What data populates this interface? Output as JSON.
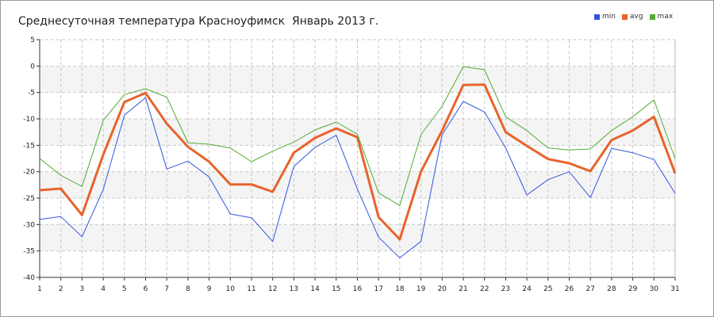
{
  "chart_data": {
    "type": "line",
    "title": "Среднесуточная температура Красноуфимск  Январь 2013 г.",
    "x": [
      1,
      2,
      3,
      4,
      5,
      6,
      7,
      8,
      9,
      10,
      11,
      12,
      13,
      14,
      15,
      16,
      17,
      18,
      19,
      20,
      21,
      22,
      23,
      24,
      25,
      26,
      27,
      28,
      29,
      30,
      31
    ],
    "xlim": [
      1,
      31
    ],
    "ylim": [
      -40,
      5
    ],
    "yticks": [
      5,
      0,
      -5,
      -10,
      -15,
      -20,
      -25,
      -30,
      -35,
      -40
    ],
    "grid": true,
    "legend_position": "top-right",
    "series": [
      {
        "name": "min",
        "color": "#3355dd",
        "values": [
          -29,
          -28.5,
          -32.3,
          -23.4,
          -9.3,
          -6,
          -19.5,
          -18,
          -21,
          -28,
          -28.7,
          -33.2,
          -19,
          -15.4,
          -13.1,
          -23.3,
          -32.4,
          -36.3,
          -33.2,
          -13,
          -6.7,
          -8.7,
          -15.5,
          -24.4,
          -21.5,
          -20,
          -24.9,
          -15.6,
          -16.4,
          -17.7,
          -24.1
        ]
      },
      {
        "name": "avg",
        "color": "#e8632b",
        "values": [
          -23.5,
          -23.2,
          -28.2,
          -16.8,
          -6.8,
          -5.1,
          -10.9,
          -15.3,
          -18.1,
          -22.4,
          -22.4,
          -23.8,
          -16.4,
          -13.6,
          -11.8,
          -13.5,
          -28.6,
          -32.8,
          -20,
          -12.2,
          -3.6,
          -3.5,
          -12.5,
          -15.1,
          -17.6,
          -18.4,
          -19.9,
          -14,
          -12.2,
          -9.6,
          -20.3
        ]
      },
      {
        "name": "max",
        "color": "#55aa33",
        "values": [
          -17.5,
          -20.7,
          -22.8,
          -10.3,
          -5.4,
          -4.3,
          -5.9,
          -14.5,
          -14.8,
          -15.5,
          -18.1,
          -16.1,
          -14.4,
          -12.1,
          -10.6,
          -12.9,
          -24,
          -26.4,
          -13,
          -7.6,
          -0.1,
          -0.7,
          -9.6,
          -12.2,
          -15.5,
          -15.9,
          -15.7,
          -12.2,
          -9.6,
          -6.4,
          -17.5
        ]
      }
    ]
  }
}
